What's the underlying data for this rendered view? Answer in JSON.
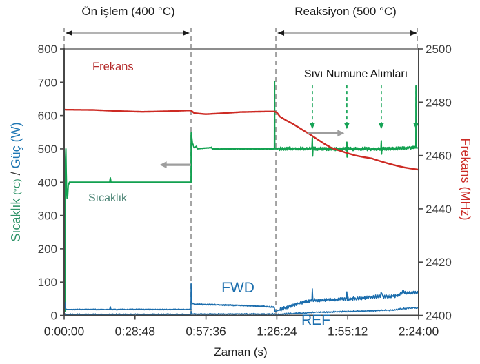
{
  "chart_data": {
    "type": "line",
    "x_axis": {
      "title": "Zaman (s)",
      "range_s": [
        0,
        8640
      ],
      "ticks": [
        {
          "t": 0,
          "label": "0:00:00"
        },
        {
          "t": 1728,
          "label": "0:28:48"
        },
        {
          "t": 3456,
          "label": "0:57:36"
        },
        {
          "t": 5184,
          "label": "1:26:24"
        },
        {
          "t": 6912,
          "label": "1:55:12"
        },
        {
          "t": 8640,
          "label": "2:24:00"
        }
      ]
    },
    "left_axis": {
      "title_parts": {
        "temp": "Sıcaklık",
        "temp_unit": "(°C)",
        "sep": "/",
        "power": "Güç (W)"
      },
      "range": [
        0,
        800
      ],
      "tick_values": [
        0,
        100,
        200,
        300,
        400,
        500,
        600,
        700,
        800
      ],
      "tick_labels": [
        "0",
        "100",
        "200",
        "300",
        "400",
        "500",
        "600",
        "700",
        "800"
      ]
    },
    "right_axis": {
      "title": "Frekans (MHz)",
      "range": [
        2400,
        2500
      ],
      "tick_values": [
        2400,
        2420,
        2440,
        2460,
        2480,
        2500
      ],
      "tick_labels": [
        "2400",
        "2420",
        "2440",
        "2460",
        "2480",
        "2500"
      ]
    },
    "colors": {
      "temperature": "#12a150",
      "frequency": "#cd2a23",
      "power": "#1b6dad",
      "dashed_guide": "#9c9c9c",
      "pointer_arrow": "#9e9e9e",
      "phase_arrow_line": "#9a9a9a",
      "phase_arrow_head": "#1a1a1a",
      "sample_arrow": "#17a457"
    },
    "series": [
      {
        "name": "Sıcaklık",
        "axis": "left",
        "unit": "°C",
        "color": "#12a150",
        "width": 2,
        "points": [
          [
            0,
            12
          ],
          [
            25,
            12
          ],
          [
            33,
            470
          ],
          [
            42,
            500
          ],
          [
            50,
            430
          ],
          [
            60,
            378
          ],
          [
            72,
            352
          ],
          [
            85,
            358
          ],
          [
            100,
            390
          ],
          [
            130,
            400
          ],
          [
            1110,
            400
          ],
          [
            1126,
            413
          ],
          [
            1142,
            400
          ],
          [
            3088,
            400
          ],
          [
            3094,
            400
          ],
          [
            3097,
            548
          ],
          [
            3125,
            518
          ],
          [
            3170,
            503
          ],
          [
            3225,
            508
          ],
          [
            3245,
            500
          ],
          [
            3590,
            504
          ],
          [
            3615,
            500
          ],
          [
            5118,
            500
          ],
          [
            5125,
            500
          ],
          [
            5129,
            703
          ],
          [
            5134,
            500
          ],
          [
            5400,
            501
          ],
          [
            6040,
            500
          ],
          [
            6050,
            531
          ],
          [
            6057,
            477
          ],
          [
            6064,
            500
          ],
          [
            6880,
            500
          ],
          [
            6890,
            524
          ],
          [
            6897,
            479
          ],
          [
            6904,
            500
          ],
          [
            7722,
            500
          ],
          [
            7730,
            521
          ],
          [
            7737,
            483
          ],
          [
            7744,
            500
          ],
          [
            8300,
            502
          ],
          [
            8565,
            503
          ],
          [
            8572,
            505
          ],
          [
            8576,
            688
          ],
          [
            8580,
            503
          ],
          [
            8640,
            503
          ]
        ],
        "jitter": [
          {
            "from": 3300,
            "to": 5100,
            "amp": 0.7
          },
          {
            "from": 5200,
            "to": 8560,
            "amp": 4.5
          }
        ]
      },
      {
        "name": "Frekans",
        "axis": "right",
        "unit": "MHz",
        "color": "#cd2a23",
        "width": 2.4,
        "points": [
          [
            0,
            2477.2
          ],
          [
            700,
            2477.1
          ],
          [
            1300,
            2476.7
          ],
          [
            1900,
            2476.4
          ],
          [
            2500,
            2476.6
          ],
          [
            3000,
            2476.9
          ],
          [
            3094,
            2476.9
          ],
          [
            3170,
            2475.9
          ],
          [
            3450,
            2475.5
          ],
          [
            3800,
            2475.8
          ],
          [
            4300,
            2476.3
          ],
          [
            4900,
            2476.5
          ],
          [
            5130,
            2476.5
          ],
          [
            5185,
            2476.1
          ],
          [
            5260,
            2474.6
          ],
          [
            5400,
            2473.3
          ],
          [
            5560,
            2472.0
          ],
          [
            5740,
            2470.3
          ],
          [
            5940,
            2468.4
          ],
          [
            6140,
            2466.4
          ],
          [
            6340,
            2464.4
          ],
          [
            6500,
            2463.0
          ],
          [
            6700,
            2461.9
          ],
          [
            6900,
            2460.9
          ],
          [
            7100,
            2460.0
          ],
          [
            7300,
            2459.4
          ],
          [
            7500,
            2458.9
          ],
          [
            7700,
            2457.9
          ],
          [
            7900,
            2457.0
          ],
          [
            8100,
            2456.2
          ],
          [
            8300,
            2455.5
          ],
          [
            8500,
            2455.0
          ],
          [
            8640,
            2454.7
          ]
        ],
        "jitter": []
      },
      {
        "name": "FWD",
        "axis": "left",
        "unit": "W",
        "color": "#1b6dad",
        "width": 1.6,
        "points": [
          [
            0,
            3
          ],
          [
            14,
            40
          ],
          [
            28,
            22
          ],
          [
            55,
            18
          ],
          [
            300,
            18
          ],
          [
            1110,
            18
          ],
          [
            1126,
            25
          ],
          [
            1142,
            18
          ],
          [
            3082,
            18
          ],
          [
            3091,
            18
          ],
          [
            3095,
            95
          ],
          [
            3101,
            52
          ],
          [
            3115,
            37
          ],
          [
            3220,
            33
          ],
          [
            3650,
            32
          ],
          [
            4250,
            30
          ],
          [
            4850,
            27
          ],
          [
            5105,
            25
          ],
          [
            5125,
            22
          ],
          [
            5140,
            12
          ],
          [
            5260,
            17
          ],
          [
            5460,
            26
          ],
          [
            5660,
            34
          ],
          [
            5860,
            41
          ],
          [
            6040,
            45
          ],
          [
            6050,
            78
          ],
          [
            6061,
            46
          ],
          [
            6220,
            45
          ],
          [
            6420,
            47
          ],
          [
            6640,
            48
          ],
          [
            6878,
            50
          ],
          [
            6890,
            75
          ],
          [
            6902,
            50
          ],
          [
            7120,
            51
          ],
          [
            7420,
            54
          ],
          [
            7700,
            57
          ],
          [
            7730,
            66
          ],
          [
            7765,
            56
          ],
          [
            8000,
            58
          ],
          [
            8160,
            60
          ],
          [
            8255,
            71
          ],
          [
            8360,
            66
          ],
          [
            8500,
            68
          ],
          [
            8640,
            69
          ]
        ],
        "jitter": [
          {
            "from": 160,
            "to": 3080,
            "amp": 1.1
          },
          {
            "from": 3120,
            "to": 5100,
            "amp": 1.6
          },
          {
            "from": 5260,
            "to": 8640,
            "amp": 4.5
          }
        ]
      },
      {
        "name": "REF",
        "axis": "left",
        "unit": "W",
        "color": "#1b6dad",
        "width": 1.3,
        "points": [
          [
            0,
            3
          ],
          [
            3090,
            3
          ],
          [
            3095,
            11
          ],
          [
            3108,
            4
          ],
          [
            4100,
            4
          ],
          [
            5120,
            4
          ],
          [
            5140,
            3
          ],
          [
            5450,
            5
          ],
          [
            5850,
            7
          ],
          [
            6055,
            9
          ],
          [
            6420,
            10
          ],
          [
            6890,
            12
          ],
          [
            7320,
            13
          ],
          [
            7720,
            15
          ],
          [
            8020,
            16
          ],
          [
            8210,
            20
          ],
          [
            8420,
            22
          ],
          [
            8640,
            23
          ]
        ],
        "jitter": [
          {
            "from": 0,
            "to": 8640,
            "amp": 2
          }
        ]
      }
    ],
    "annotations": {
      "phases": [
        {
          "label": "Ön işlem (400 °C)",
          "t0": 0,
          "t1": 3093
        },
        {
          "label": "Reaksiyon (500 °C)",
          "t0": 5161,
          "t1": 8640
        }
      ],
      "boundaries": [
        {
          "t": 0,
          "full": false
        },
        {
          "t": 3093,
          "full": true
        },
        {
          "t": 5161,
          "full": true
        },
        {
          "t": 8607,
          "full": false
        }
      ],
      "sample_arrows": {
        "label": "Sıvı Numune Alımları",
        "times": [
          6050,
          6890,
          7730,
          8575
        ],
        "from_value": 692,
        "to_value": 576
      },
      "axis_pointers": [
        {
          "dir": "left",
          "t_from": 3090,
          "t_to": 2330,
          "value": 452
        },
        {
          "dir": "right",
          "t_from": 5930,
          "t_to": 6830,
          "value": 547
        }
      ]
    }
  }
}
